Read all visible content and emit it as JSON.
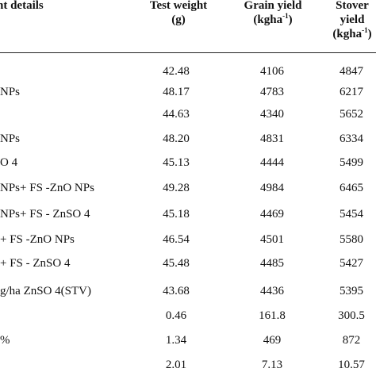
{
  "table": {
    "headers": {
      "treatment": "nt details",
      "test_weight": [
        "Test weight",
        "(g)"
      ],
      "grain_yield": [
        "Grain yield",
        "(kgha",
        "-1",
        ")"
      ],
      "stover_yield": [
        "Stover",
        "yield",
        "(kgha",
        "-1",
        ")"
      ]
    },
    "rows": [
      {
        "label": "",
        "test_weight": "42.48",
        "grain_yield": "4106",
        "stover_yield": "4847"
      },
      {
        "label": "NPs",
        "test_weight": "48.17",
        "grain_yield": "4783",
        "stover_yield": "6217"
      },
      {
        "label": "",
        "test_weight": "44.63",
        "grain_yield": "4340",
        "stover_yield": "5652"
      },
      {
        "label": "NPs",
        "test_weight": "48.20",
        "grain_yield": "4831",
        "stover_yield": "6334"
      },
      {
        "label": "O 4",
        "test_weight": "45.13",
        "grain_yield": "4444",
        "stover_yield": "5499"
      },
      {
        "label": "NPs+ FS -ZnO NPs",
        "test_weight": "49.28",
        "grain_yield": "4984",
        "stover_yield": "6465"
      },
      {
        "label": "NPs+ FS - ZnSO 4",
        "test_weight": "45.18",
        "grain_yield": "4469",
        "stover_yield": "5454"
      },
      {
        "label": "+ FS -ZnO NPs",
        "test_weight": "46.54",
        "grain_yield": "4501",
        "stover_yield": "5580"
      },
      {
        "label": "+ FS - ZnSO 4",
        "test_weight": "45.48",
        "grain_yield": "4485",
        "stover_yield": "5427"
      },
      {
        "label": "g/ha ZnSO 4(STV)",
        "test_weight": "43.68",
        "grain_yield": "4436",
        "stover_yield": "5395"
      },
      {
        "label": "",
        "test_weight": "0.46",
        "grain_yield": "161.8",
        "stover_yield": "300.5"
      },
      {
        "label": "%",
        "test_weight": "1.34",
        "grain_yield": "469",
        "stover_yield": "872"
      },
      {
        "label": "",
        "test_weight": "2.01",
        "grain_yield": "7.13",
        "stover_yield": "10.57"
      }
    ]
  }
}
